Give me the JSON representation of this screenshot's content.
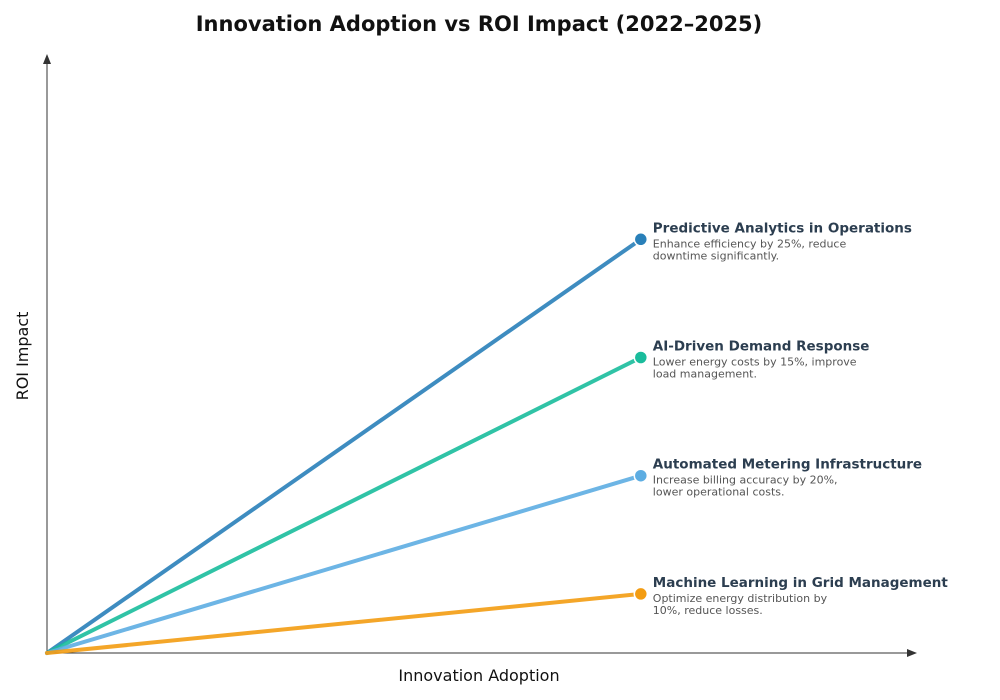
{
  "chart_data": {
    "type": "line",
    "title": "Innovation Adoption vs ROI Impact (2022–2025)",
    "xlabel": "Innovation Adoption",
    "ylabel": "ROI Impact",
    "xlim": [
      0,
      1.45
    ],
    "ylim": [
      0,
      1.0
    ],
    "grid": false,
    "legend": "inline labels at line ends",
    "series": [
      {
        "name": "Predictive Analytics in Operations",
        "description_lines": [
          "Enhance efficiency by 25%, reduce",
          "downtime significantly."
        ],
        "color": "#2980b9",
        "x": [
          0,
          1
        ],
        "y": [
          0,
          0.7
        ]
      },
      {
        "name": "AI-Driven Demand Response",
        "description_lines": [
          "Lower energy costs by 15%, improve",
          "load management."
        ],
        "color": "#1abc9c",
        "x": [
          0,
          1
        ],
        "y": [
          0,
          0.5
        ]
      },
      {
        "name": "Automated Metering Infrastructure",
        "description_lines": [
          "Increase billing accuracy by 20%,",
          "lower operational costs."
        ],
        "color": "#5dade2",
        "x": [
          0,
          1
        ],
        "y": [
          0,
          0.3
        ]
      },
      {
        "name": "Machine Learning in Grid Management",
        "description_lines": [
          "Optimize energy distribution by",
          "10%, reduce losses."
        ],
        "color": "#f39c12",
        "x": [
          0,
          1
        ],
        "y": [
          0,
          0.1
        ]
      }
    ]
  }
}
